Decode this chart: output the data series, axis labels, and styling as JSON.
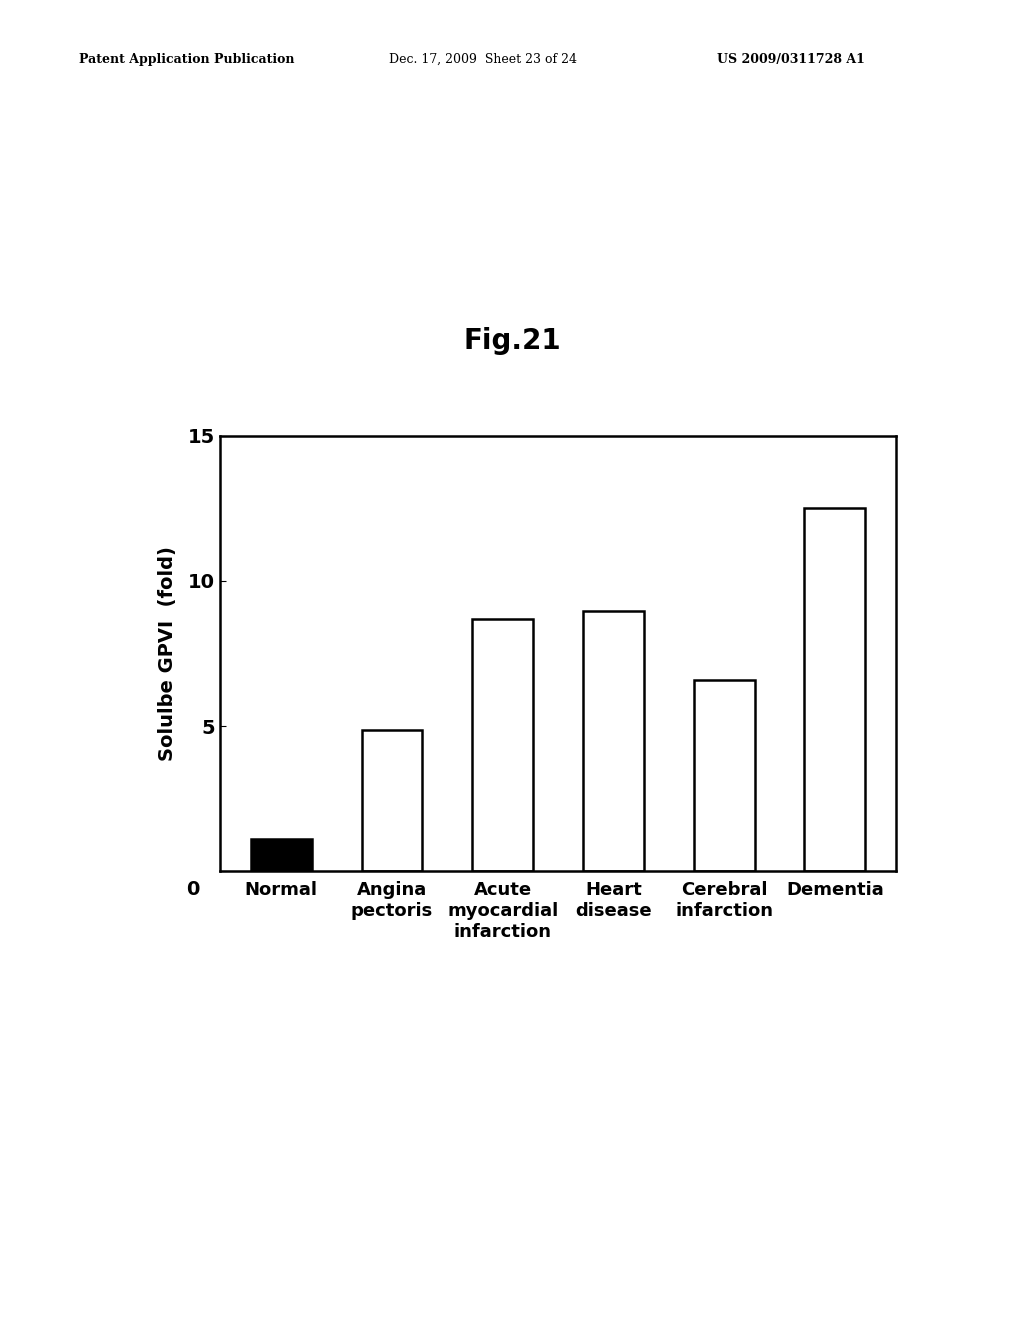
{
  "title": "Fig.21",
  "ylabel": "Solulbe GPVI  (fold)",
  "categories": [
    "Normal",
    "Angina\npectoris",
    "Acute\nmyocardial\ninfarction",
    "Heart\ndisease",
    "Cerebral\ninfarction",
    "Dementia"
  ],
  "values": [
    1.1,
    4.85,
    8.7,
    8.95,
    6.6,
    12.5
  ],
  "bar_colors": [
    "#000000",
    "#ffffff",
    "#ffffff",
    "#ffffff",
    "#ffffff",
    "#ffffff"
  ],
  "bar_edgecolors": [
    "#000000",
    "#000000",
    "#000000",
    "#000000",
    "#000000",
    "#000000"
  ],
  "ylim": [
    0,
    15
  ],
  "yticks": [
    0,
    5,
    10,
    15
  ],
  "background_color": "#ffffff",
  "title_fontsize": 20,
  "ylabel_fontsize": 14,
  "tick_fontsize": 14,
  "xlabel_fontsize": 13,
  "bar_width": 0.55,
  "linewidth": 1.8,
  "header_left": "Patent Application Publication",
  "header_mid": "Dec. 17, 2009  Sheet 23 of 24",
  "header_right": "US 2009/0311728 A1",
  "header_fontsize": 9
}
